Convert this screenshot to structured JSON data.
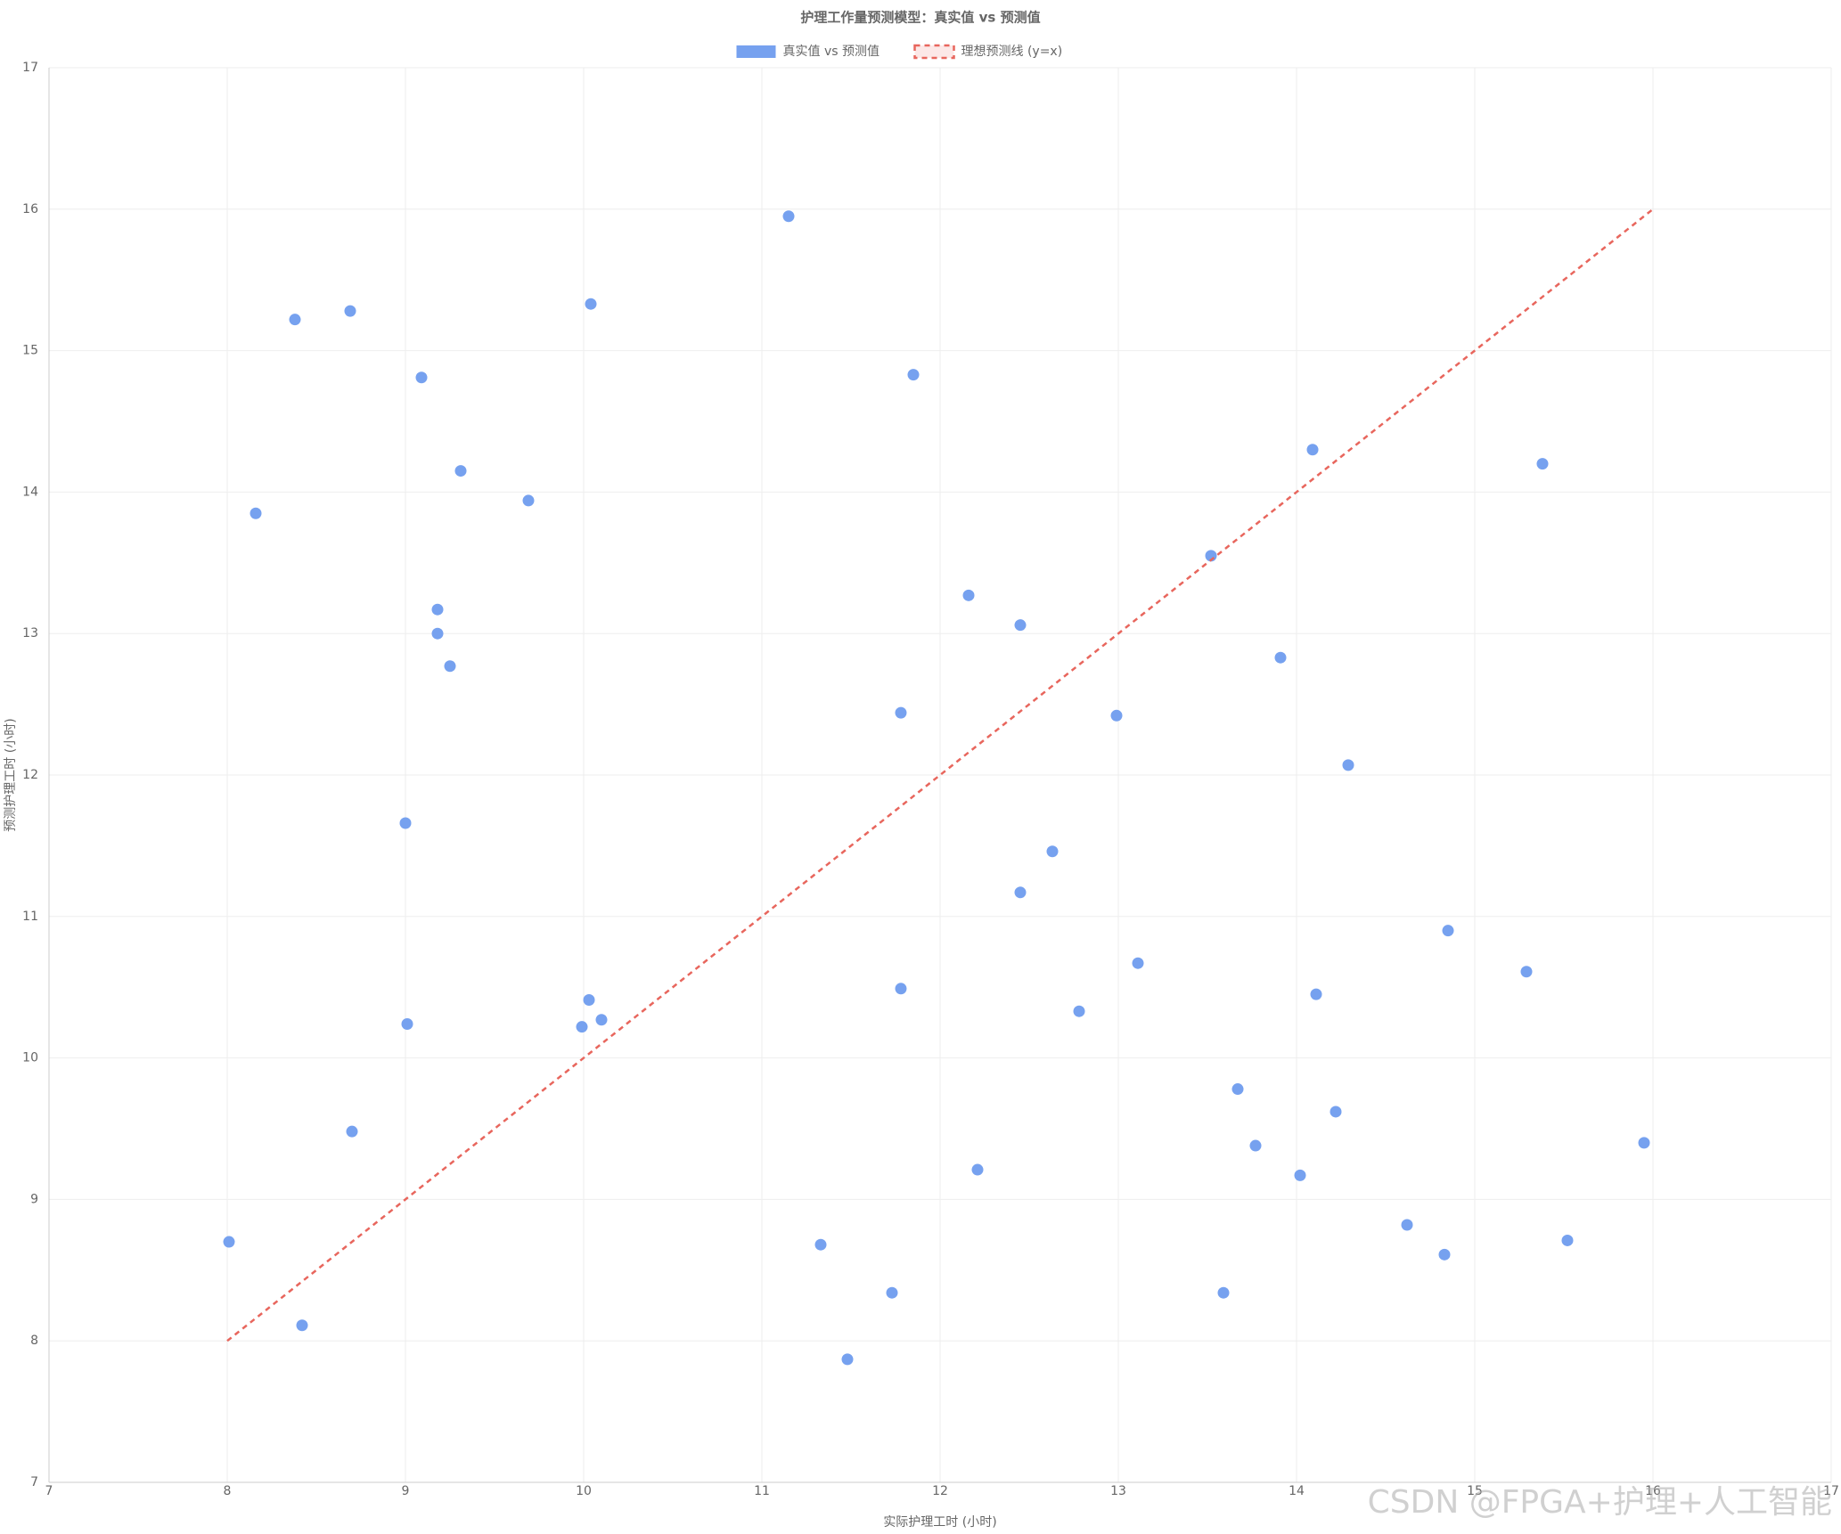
{
  "chart_data": {
    "type": "scatter",
    "title": "护理工作量预测模型：真实值 vs 预测值",
    "x_label": "实际护理工时 (小时)",
    "y_label": "预测护理工时 (小时)",
    "xlim": [
      7,
      17
    ],
    "xticks": [
      7,
      8,
      9,
      10,
      11,
      12,
      13,
      14,
      15,
      16,
      17
    ],
    "ylim": [
      7,
      17
    ],
    "yticks": [
      7,
      8,
      9,
      10,
      11,
      12,
      13,
      14,
      15,
      16,
      17
    ],
    "grid": true,
    "legend": "top",
    "series": [
      {
        "name": "真实值 vs 预测值",
        "type": "scatter",
        "color": "#76a1ef",
        "x": [
          11.15,
          8.38,
          8.69,
          10.04,
          9.09,
          11.85,
          9.31,
          8.16,
          9.69,
          14.09,
          15.38,
          13.52,
          12.16,
          12.45,
          9.18,
          9.18,
          9.25,
          13.91,
          11.78,
          12.99,
          14.29,
          9.0,
          12.63,
          12.45,
          14.85,
          13.11,
          15.29,
          11.78,
          14.11,
          12.78,
          10.03,
          10.1,
          9.99,
          9.01,
          13.67,
          14.22,
          8.7,
          13.77,
          15.95,
          14.02,
          12.21,
          8.01,
          11.33,
          14.62,
          15.52,
          14.83,
          8.42,
          11.73,
          13.59,
          11.48
        ],
        "values": [
          15.95,
          15.22,
          15.28,
          15.33,
          14.81,
          14.83,
          14.15,
          13.85,
          13.94,
          14.3,
          14.2,
          13.55,
          13.27,
          13.06,
          13.17,
          13.0,
          12.77,
          12.83,
          12.44,
          12.42,
          12.07,
          11.66,
          11.46,
          11.17,
          10.9,
          10.67,
          10.61,
          10.49,
          10.45,
          10.33,
          10.41,
          10.27,
          10.22,
          10.24,
          9.78,
          9.62,
          9.48,
          9.38,
          9.4,
          9.17,
          9.21,
          8.7,
          8.68,
          8.82,
          8.71,
          8.61,
          8.11,
          8.34,
          8.34,
          7.87
        ]
      },
      {
        "name": "理想预测线 (y=x)",
        "type": "line",
        "color": "#e8665d",
        "dashed": true,
        "x": [
          8,
          16
        ],
        "values": [
          8,
          16
        ]
      }
    ],
    "watermark": "CSDN @FPGA+护理+人工智能"
  }
}
